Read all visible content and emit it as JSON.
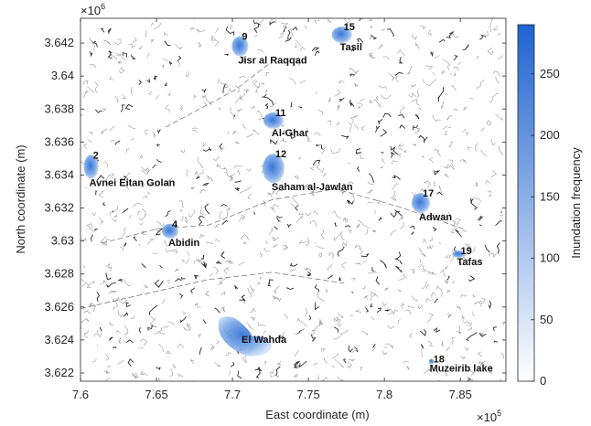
{
  "chart_data": {
    "type": "map",
    "xlabel": "East coordinate (m)",
    "ylabel": "North coordinate (m)",
    "x_exponent": "×10",
    "x_exponent_power": "5",
    "y_exponent": "×10",
    "y_exponent_power": "6",
    "xlim": [
      7.6,
      7.88
    ],
    "ylim": [
      3.6215,
      3.6435
    ],
    "x_ticks": [
      7.6,
      7.65,
      7.7,
      7.75,
      7.8,
      7.85
    ],
    "x_tick_labels": [
      "7.6",
      "7.65",
      "7.7",
      "7.75",
      "7.8",
      "7.85"
    ],
    "y_ticks": [
      3.622,
      3.624,
      3.626,
      3.628,
      3.63,
      3.632,
      3.634,
      3.636,
      3.638,
      3.64,
      3.642
    ],
    "y_tick_labels": [
      "3.622",
      "3.624",
      "3.626",
      "3.628",
      "3.63",
      "3.632",
      "3.634",
      "3.636",
      "3.638",
      "3.64",
      "3.642"
    ],
    "colorbar": {
      "label": "Inundation frequency",
      "range": [
        0,
        290
      ],
      "ticks": [
        0,
        50,
        100,
        150,
        200,
        250
      ],
      "tick_labels": [
        "0",
        "50",
        "100",
        "150",
        "200",
        "250"
      ],
      "color_low": "#ffffff",
      "color_high": "#1f63d0"
    },
    "sites": [
      {
        "id": "2",
        "name": "Avnei Eitan Golan",
        "x": 7.607,
        "y": 3.6345
      },
      {
        "id": "4",
        "name": "Abidin",
        "x": 7.659,
        "y": 3.6306
      },
      {
        "id": "9",
        "name": "Jisr al Raqqad",
        "x": 7.705,
        "y": 3.6418
      },
      {
        "id": "11",
        "name": "Al-Ghar",
        "x": 7.727,
        "y": 3.6373
      },
      {
        "id": "12",
        "name": "Saham al-Jawlan",
        "x": 7.727,
        "y": 3.6344
      },
      {
        "id": "15",
        "name": "Tasil",
        "x": 7.772,
        "y": 3.6425
      },
      {
        "id": "17",
        "name": "Adwan",
        "x": 7.824,
        "y": 3.6323
      },
      {
        "id": "18",
        "name": "Muzeirib lake",
        "x": 7.831,
        "y": 3.6227
      },
      {
        "id": "19",
        "name": "Tafas",
        "x": 7.849,
        "y": 3.6292
      }
    ]
  }
}
